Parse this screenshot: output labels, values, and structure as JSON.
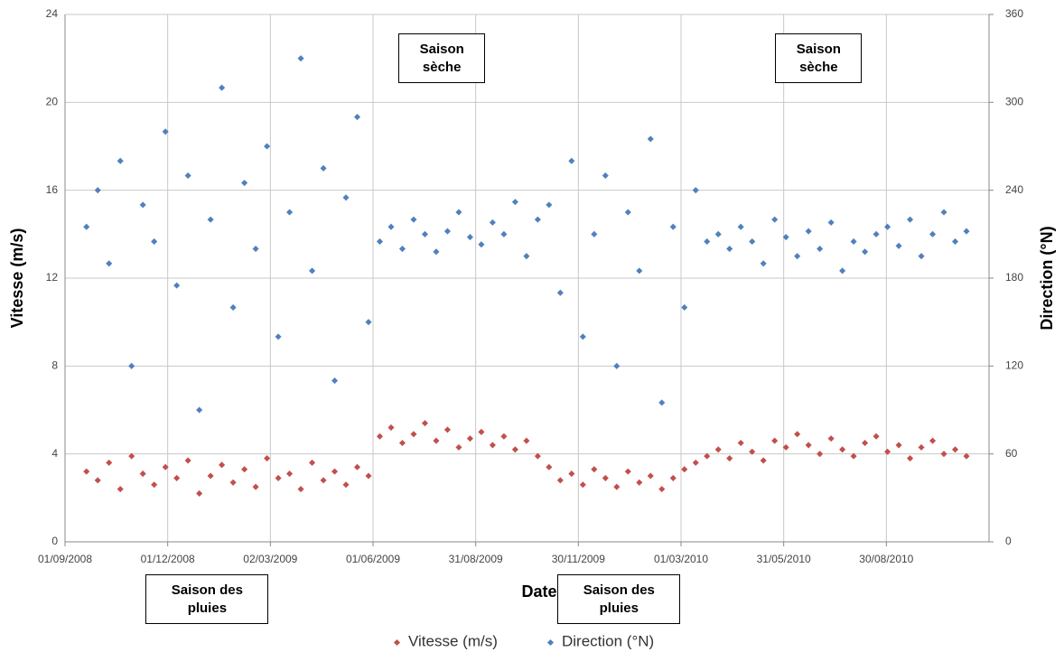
{
  "chart_data": {
    "type": "scatter",
    "x_label": "Date",
    "y_label": "Vitesse (m/s)",
    "y2_label": "Direction (°N)",
    "x": [
      "20/09/2008",
      "30/09/2008",
      "10/10/2008",
      "20/10/2008",
      "30/10/2008",
      "09/11/2008",
      "19/11/2008",
      "29/11/2008",
      "09/12/2008",
      "19/12/2008",
      "29/12/2008",
      "08/01/2009",
      "18/01/2009",
      "28/01/2009",
      "07/02/2009",
      "17/02/2009",
      "27/02/2009",
      "09/03/2009",
      "19/03/2009",
      "29/03/2009",
      "08/04/2009",
      "18/04/2009",
      "28/04/2009",
      "08/05/2009",
      "18/05/2009",
      "28/05/2009",
      "07/06/2009",
      "17/06/2009",
      "27/06/2009",
      "07/07/2009",
      "17/07/2009",
      "27/07/2009",
      "06/08/2009",
      "16/08/2009",
      "26/08/2009",
      "05/09/2009",
      "15/09/2009",
      "25/09/2009",
      "05/10/2009",
      "15/10/2009",
      "25/10/2009",
      "04/11/2009",
      "14/11/2009",
      "24/11/2009",
      "04/12/2009",
      "14/12/2009",
      "24/12/2009",
      "03/01/2010",
      "13/01/2010",
      "23/01/2010",
      "02/02/2010",
      "12/02/2010",
      "22/02/2010",
      "04/03/2010",
      "14/03/2010",
      "24/03/2010",
      "03/04/2010",
      "13/04/2010",
      "23/04/2010",
      "03/05/2010",
      "13/05/2010",
      "23/05/2010",
      "02/06/2010",
      "12/06/2010",
      "22/06/2010",
      "02/07/2010",
      "12/07/2010",
      "22/07/2010",
      "01/08/2010",
      "11/08/2010",
      "21/08/2010",
      "31/08/2010",
      "10/09/2010",
      "20/09/2010",
      "30/09/2010",
      "10/10/2010",
      "20/10/2010",
      "30/10/2010",
      "09/11/2010"
    ],
    "series": [
      {
        "name": "Vitesse (m/s)",
        "color": "#c0504d",
        "values": [
          3.2,
          2.8,
          3.6,
          2.4,
          3.9,
          3.1,
          2.6,
          3.4,
          2.9,
          3.7,
          2.2,
          3.0,
          3.5,
          2.7,
          3.3,
          2.5,
          3.8,
          2.9,
          3.1,
          2.4,
          3.6,
          2.8,
          3.2,
          2.6,
          3.4,
          3.0,
          4.8,
          5.2,
          4.5,
          4.9,
          5.4,
          4.6,
          5.1,
          4.3,
          4.7,
          5.0,
          4.4,
          4.8,
          4.2,
          4.6,
          3.9,
          3.4,
          2.8,
          3.1,
          2.6,
          3.3,
          2.9,
          2.5,
          3.2,
          2.7,
          3.0,
          2.4,
          2.9,
          3.3,
          3.6,
          3.9,
          4.2,
          3.8,
          4.5,
          4.1,
          3.7,
          4.6,
          4.3,
          4.9,
          4.4,
          4.0,
          4.7,
          4.2,
          3.9,
          4.5,
          4.8,
          4.1,
          4.4,
          3.8,
          4.3,
          4.6,
          4.0,
          4.2,
          3.9
        ]
      },
      {
        "name": "Direction (°N)",
        "color": "#4f81bd",
        "axis": "y2",
        "values": [
          215,
          240,
          190,
          260,
          120,
          230,
          205,
          280,
          175,
          250,
          90,
          220,
          310,
          160,
          245,
          200,
          270,
          140,
          225,
          330,
          185,
          255,
          110,
          235,
          290,
          150,
          205,
          215,
          200,
          220,
          210,
          198,
          212,
          225,
          208,
          203,
          218,
          210,
          232,
          195,
          220,
          230,
          170,
          260,
          140,
          210,
          250,
          120,
          225,
          185,
          275,
          95,
          215,
          160,
          240,
          205,
          210,
          200,
          215,
          205,
          190,
          220,
          208,
          195,
          212,
          200,
          218,
          185,
          205,
          198,
          210,
          215,
          202,
          220,
          195,
          210,
          225,
          205,
          212
        ]
      }
    ],
    "xlim": [
      "01/09/2008",
      "29/11/2010"
    ],
    "xticks": [
      "01/09/2008",
      "01/12/2008",
      "02/03/2009",
      "01/06/2009",
      "31/08/2009",
      "30/11/2009",
      "01/03/2010",
      "31/05/2010",
      "30/08/2010"
    ],
    "ylim": [
      0,
      24
    ],
    "yticks": [
      0,
      4,
      8,
      12,
      16,
      20,
      24
    ],
    "y2lim": [
      0,
      360
    ],
    "y2ticks": [
      0,
      60,
      120,
      180,
      240,
      300,
      360
    ],
    "grid": true,
    "legend": "bottom",
    "annotations": [
      {
        "text": "Saison sèche",
        "date": "01/08/2009",
        "position": "top"
      },
      {
        "text": "Saison sèche",
        "date": "01/07/2010",
        "position": "top"
      },
      {
        "text": "Saison des pluies",
        "date": "05/01/2009",
        "position": "bottom"
      },
      {
        "text": "Saison des pluies",
        "date": "05/01/2010",
        "position": "bottom"
      }
    ]
  }
}
